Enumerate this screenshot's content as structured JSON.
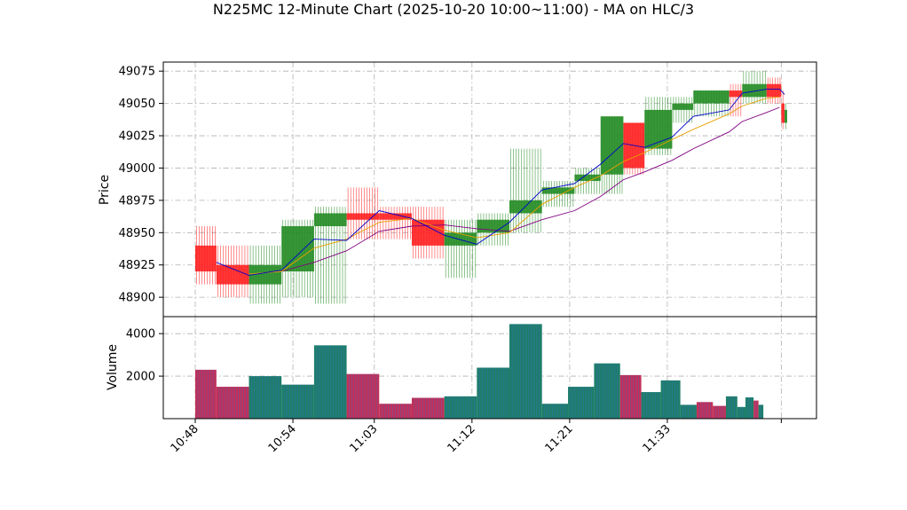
{
  "chart_data": [
    {
      "type": "candlestick",
      "title": "N225MC 12-Minute Chart (2025-10-20 10:00~11:00) - MA on HLC/3",
      "ylabel": "Price",
      "ylim": [
        48885,
        49082
      ],
      "yticks": [
        48900,
        48925,
        48950,
        48975,
        49000,
        49025,
        49050,
        49075
      ],
      "grid": true,
      "colors": {
        "up": "#228B22",
        "down": "#FF2020",
        "ma_short": "#0000CC",
        "ma_mid": "#E8A000",
        "ma_long": "#800080"
      },
      "candles": [
        {
          "t": 0,
          "o": 48940,
          "h": 48955,
          "l": 48910,
          "c": 48920
        },
        {
          "t": 1.3,
          "o": 48925,
          "h": 48940,
          "l": 48900,
          "c": 48910
        },
        {
          "t": 3.3,
          "o": 48910,
          "h": 48940,
          "l": 48895,
          "c": 48925
        },
        {
          "t": 5.3,
          "o": 48920,
          "h": 48960,
          "l": 48900,
          "c": 48955
        },
        {
          "t": 7.3,
          "o": 48955,
          "h": 48970,
          "l": 48895,
          "c": 48965
        },
        {
          "t": 9.3,
          "o": 48965,
          "h": 48985,
          "l": 48945,
          "c": 48960
        },
        {
          "t": 11.3,
          "o": 48965,
          "h": 48970,
          "l": 48945,
          "c": 48960
        },
        {
          "t": 13.3,
          "o": 48960,
          "h": 48970,
          "l": 48930,
          "c": 48940
        },
        {
          "t": 15.3,
          "o": 48940,
          "h": 48960,
          "l": 48915,
          "c": 48950
        },
        {
          "t": 17.3,
          "o": 48950,
          "h": 48965,
          "l": 48940,
          "c": 48960
        },
        {
          "t": 19.3,
          "o": 48965,
          "h": 49015,
          "l": 48950,
          "c": 48975
        },
        {
          "t": 21.3,
          "o": 48980,
          "h": 48990,
          "l": 48970,
          "c": 48985
        },
        {
          "t": 23.3,
          "o": 48990,
          "h": 49000,
          "l": 48980,
          "c": 48995
        },
        {
          "t": 24.9,
          "o": 48995,
          "h": 49040,
          "l": 48980,
          "c": 49040
        },
        {
          "t": 26.3,
          "o": 49035,
          "h": 49035,
          "l": 48995,
          "c": 49000
        },
        {
          "t": 27.6,
          "o": 49015,
          "h": 49055,
          "l": 49010,
          "c": 49045
        },
        {
          "t": 29.3,
          "o": 49045,
          "h": 49055,
          "l": 49035,
          "c": 49050
        },
        {
          "t": 30.6,
          "o": 49050,
          "h": 49060,
          "l": 49040,
          "c": 49060
        },
        {
          "t": 32.8,
          "o": 49060,
          "h": 49065,
          "l": 49040,
          "c": 49055
        },
        {
          "t": 33.6,
          "o": 49055,
          "h": 49075,
          "l": 49050,
          "c": 49065
        },
        {
          "t": 35.1,
          "o": 49065,
          "h": 49070,
          "l": 49050,
          "c": 49055
        },
        {
          "t": 36.0,
          "o": 49050,
          "h": 49060,
          "l": 49030,
          "c": 49035
        },
        {
          "t": 36.2,
          "o": 49035,
          "h": 49050,
          "l": 49030,
          "c": 49045
        }
      ],
      "ma_short": [
        [
          1.3,
          48927
        ],
        [
          3.3,
          48917
        ],
        [
          5.3,
          48921
        ],
        [
          7.3,
          48945
        ],
        [
          9.3,
          48944
        ],
        [
          11.3,
          48967
        ],
        [
          13.3,
          48961
        ],
        [
          15.3,
          48948
        ],
        [
          17.3,
          48941
        ],
        [
          19.3,
          48958
        ],
        [
          21.3,
          48983
        ],
        [
          23.3,
          48988
        ],
        [
          24.9,
          49003
        ],
        [
          26.3,
          49019
        ],
        [
          27.6,
          49016
        ],
        [
          29.3,
          49024
        ],
        [
          30.6,
          49040
        ],
        [
          32.8,
          49045
        ],
        [
          33.6,
          49058
        ],
        [
          35.1,
          49061
        ],
        [
          35.9,
          49061
        ],
        [
          36.2,
          49057
        ]
      ],
      "ma_mid": [
        [
          3.3,
          48918
        ],
        [
          5.3,
          48920
        ],
        [
          7.3,
          48938
        ],
        [
          9.3,
          48945
        ],
        [
          11.3,
          48958
        ],
        [
          13.3,
          48961
        ],
        [
          15.3,
          48952
        ],
        [
          17.3,
          48946
        ],
        [
          19.3,
          48950
        ],
        [
          21.3,
          48972
        ],
        [
          23.3,
          48985
        ],
        [
          24.9,
          48994
        ],
        [
          26.3,
          49005
        ],
        [
          27.6,
          49012
        ],
        [
          29.3,
          49022
        ],
        [
          30.6,
          49030
        ],
        [
          32.8,
          49042
        ],
        [
          33.6,
          49048
        ],
        [
          35.1,
          49054
        ],
        [
          35.9,
          49055
        ]
      ],
      "ma_long": [
        [
          5.3,
          48920
        ],
        [
          7.3,
          48927
        ],
        [
          9.3,
          48936
        ],
        [
          11.3,
          48951
        ],
        [
          13.3,
          48955
        ],
        [
          15.3,
          48956
        ],
        [
          17.3,
          48953
        ],
        [
          19.3,
          48951
        ],
        [
          21.3,
          48960
        ],
        [
          23.3,
          48967
        ],
        [
          24.9,
          48978
        ],
        [
          26.3,
          48991
        ],
        [
          27.6,
          48997
        ],
        [
          29.3,
          49006
        ],
        [
          30.6,
          49015
        ],
        [
          32.8,
          49028
        ],
        [
          33.6,
          49036
        ],
        [
          35.1,
          49043
        ],
        [
          35.9,
          49047
        ]
      ]
    },
    {
      "type": "bar",
      "ylabel": "Volume",
      "ylim": [
        0,
        4800
      ],
      "yticks": [
        2000,
        4000
      ],
      "grid": true,
      "colors": {
        "up": "#1E7D6B",
        "down": "#C0305A"
      },
      "bars": [
        {
          "t": 0,
          "w": 1.3,
          "v": 2300,
          "dir": "down"
        },
        {
          "t": 1.3,
          "w": 2.0,
          "v": 1500,
          "dir": "down"
        },
        {
          "t": 3.3,
          "w": 2.0,
          "v": 2000,
          "dir": "up"
        },
        {
          "t": 5.3,
          "w": 2.0,
          "v": 1600,
          "dir": "up"
        },
        {
          "t": 7.3,
          "w": 2.0,
          "v": 3450,
          "dir": "up"
        },
        {
          "t": 9.3,
          "w": 2.0,
          "v": 2100,
          "dir": "down"
        },
        {
          "t": 11.3,
          "w": 2.0,
          "v": 700,
          "dir": "down"
        },
        {
          "t": 13.3,
          "w": 2.0,
          "v": 980,
          "dir": "down"
        },
        {
          "t": 15.3,
          "w": 2.0,
          "v": 1050,
          "dir": "up"
        },
        {
          "t": 17.3,
          "w": 2.0,
          "v": 2400,
          "dir": "up"
        },
        {
          "t": 19.3,
          "w": 2.0,
          "v": 4450,
          "dir": "up"
        },
        {
          "t": 21.3,
          "w": 1.6,
          "v": 700,
          "dir": "up"
        },
        {
          "t": 22.9,
          "w": 1.6,
          "v": 1500,
          "dir": "up"
        },
        {
          "t": 24.5,
          "w": 1.6,
          "v": 2600,
          "dir": "up"
        },
        {
          "t": 26.1,
          "w": 1.3,
          "v": 2050,
          "dir": "down"
        },
        {
          "t": 27.4,
          "w": 1.2,
          "v": 1250,
          "dir": "up"
        },
        {
          "t": 28.6,
          "w": 1.2,
          "v": 1800,
          "dir": "up"
        },
        {
          "t": 29.8,
          "w": 1.0,
          "v": 650,
          "dir": "up"
        },
        {
          "t": 30.8,
          "w": 1.0,
          "v": 780,
          "dir": "down"
        },
        {
          "t": 31.8,
          "w": 0.8,
          "v": 600,
          "dir": "down"
        },
        {
          "t": 32.6,
          "w": 0.7,
          "v": 1050,
          "dir": "up"
        },
        {
          "t": 33.3,
          "w": 0.5,
          "v": 550,
          "dir": "up"
        },
        {
          "t": 33.8,
          "w": 0.5,
          "v": 1000,
          "dir": "up"
        },
        {
          "t": 34.3,
          "w": 0.3,
          "v": 850,
          "dir": "down"
        },
        {
          "t": 34.6,
          "w": 0.3,
          "v": 650,
          "dir": "up"
        }
      ]
    }
  ],
  "xaxis": {
    "tick_labels": [
      {
        "t": 0,
        "label": "10:48"
      },
      {
        "t": 6,
        "label": "10:54"
      },
      {
        "t": 11,
        "label": "11:03"
      },
      {
        "t": 17,
        "label": "11:12"
      },
      {
        "t": 23,
        "label": "11:21"
      },
      {
        "t": 29,
        "label": "11:33"
      },
      {
        "t": 36.0,
        "label": ""
      }
    ],
    "tmax": 36.2
  }
}
